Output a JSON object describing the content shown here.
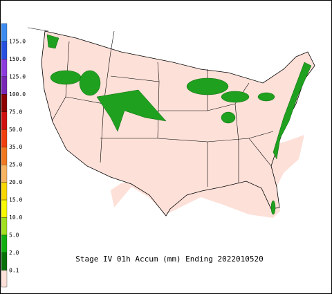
{
  "title": "Stage IV 01h Accum (mm) Ending 2022010520",
  "legend": {
    "labels": [
      "175.0",
      "150.0",
      "125.0",
      "100.0",
      "75.0",
      "50.0",
      "35.0",
      "25.0",
      "20.0",
      "15.0",
      "10.0",
      "5.0",
      "2.0",
      "0.1"
    ],
    "colors": [
      "#3c8cf0",
      "#2850e0",
      "#8c3cdc",
      "#7828b4",
      "#8c0000",
      "#d01010",
      "#f04010",
      "#f07820",
      "#f8b460",
      "#f8d800",
      "#f8f800",
      "#a0e020",
      "#10b010",
      "#087008",
      "#fde0d8"
    ]
  }
}
